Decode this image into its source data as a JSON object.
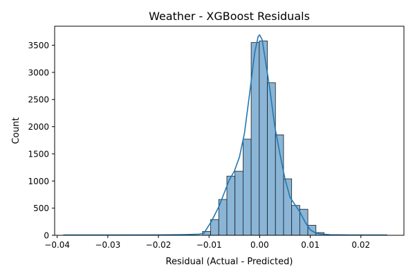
{
  "chart_data": {
    "type": "histogram",
    "title": "Weather - XGBoost Residuals",
    "xlabel": "Residual (Actual - Predicted)",
    "ylabel": "Count",
    "xlim": [
      -0.0405,
      0.0285
    ],
    "ylim": [
      0,
      3850
    ],
    "xticks": [
      -0.04,
      -0.03,
      -0.02,
      -0.01,
      0.0,
      0.01,
      0.02
    ],
    "xtick_labels": [
      "−0.04",
      "−0.03",
      "−0.02",
      "−0.01",
      "0.00",
      "0.01",
      "0.02"
    ],
    "yticks": [
      0,
      500,
      1000,
      1500,
      2000,
      2500,
      3000,
      3500
    ],
    "ytick_labels": [
      "0",
      "500",
      "1000",
      "1500",
      "2000",
      "2500",
      "3000",
      "3500"
    ],
    "bin_width": 0.0016,
    "bins": [
      {
        "start": -0.01128,
        "count": 70
      },
      {
        "start": -0.00968,
        "count": 290
      },
      {
        "start": -0.00808,
        "count": 660
      },
      {
        "start": -0.00648,
        "count": 1090
      },
      {
        "start": -0.00488,
        "count": 1180
      },
      {
        "start": -0.00328,
        "count": 1770
      },
      {
        "start": -0.00168,
        "count": 3550
      },
      {
        "start": -8e-05,
        "count": 3580
      },
      {
        "start": 0.00152,
        "count": 2810
      },
      {
        "start": 0.00312,
        "count": 1850
      },
      {
        "start": 0.00472,
        "count": 1040
      },
      {
        "start": 0.00632,
        "count": 550
      },
      {
        "start": 0.00792,
        "count": 480
      },
      {
        "start": 0.00952,
        "count": 185
      },
      {
        "start": 0.01112,
        "count": 50
      }
    ],
    "kde": {
      "x": [
        -0.0388,
        -0.03,
        -0.02,
        -0.015,
        -0.012,
        -0.011,
        -0.0095,
        -0.008,
        -0.007,
        -0.006,
        -0.005,
        -0.004,
        -0.003,
        -0.002,
        -0.001,
        -0.0003,
        0.0,
        0.0005,
        0.001,
        0.002,
        0.003,
        0.004,
        0.005,
        0.006,
        0.007,
        0.008,
        0.009,
        0.01,
        0.011,
        0.012,
        0.014,
        0.018,
        0.0252
      ],
      "y": [
        5,
        5,
        8,
        12,
        20,
        40,
        260,
        540,
        780,
        1020,
        1180,
        1440,
        1880,
        2600,
        3350,
        3660,
        3690,
        3600,
        3300,
        2700,
        2000,
        1500,
        1040,
        700,
        560,
        420,
        240,
        100,
        45,
        25,
        10,
        6,
        5
      ]
    },
    "colors": {
      "bar_fill": "#8ab5d6",
      "bar_edge": "#1a1a1a",
      "kde_line": "#1f77b4"
    },
    "grid": false,
    "legend": "none"
  }
}
